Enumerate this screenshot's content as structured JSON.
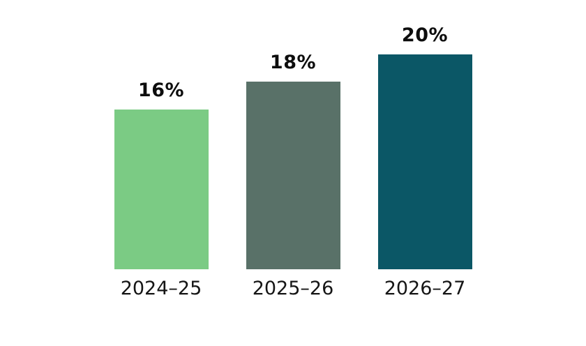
{
  "page": {
    "background_color": "#ffffff",
    "text_color": "#0d0d0d"
  },
  "chart_data": {
    "type": "bar",
    "categories": [
      "2024–25",
      "2025–26",
      "2026–27"
    ],
    "values": [
      16,
      18,
      20
    ],
    "value_labels": [
      "16%",
      "18%",
      "20%"
    ],
    "bar_colors": [
      "#7bcb84",
      "#597168",
      "#0b5766"
    ],
    "unit": "%",
    "title": "",
    "xlabel": "",
    "ylabel": "",
    "ylim": [
      4.4,
      20
    ],
    "grid": false,
    "legend": false,
    "value_label_position": "above-bar"
  }
}
